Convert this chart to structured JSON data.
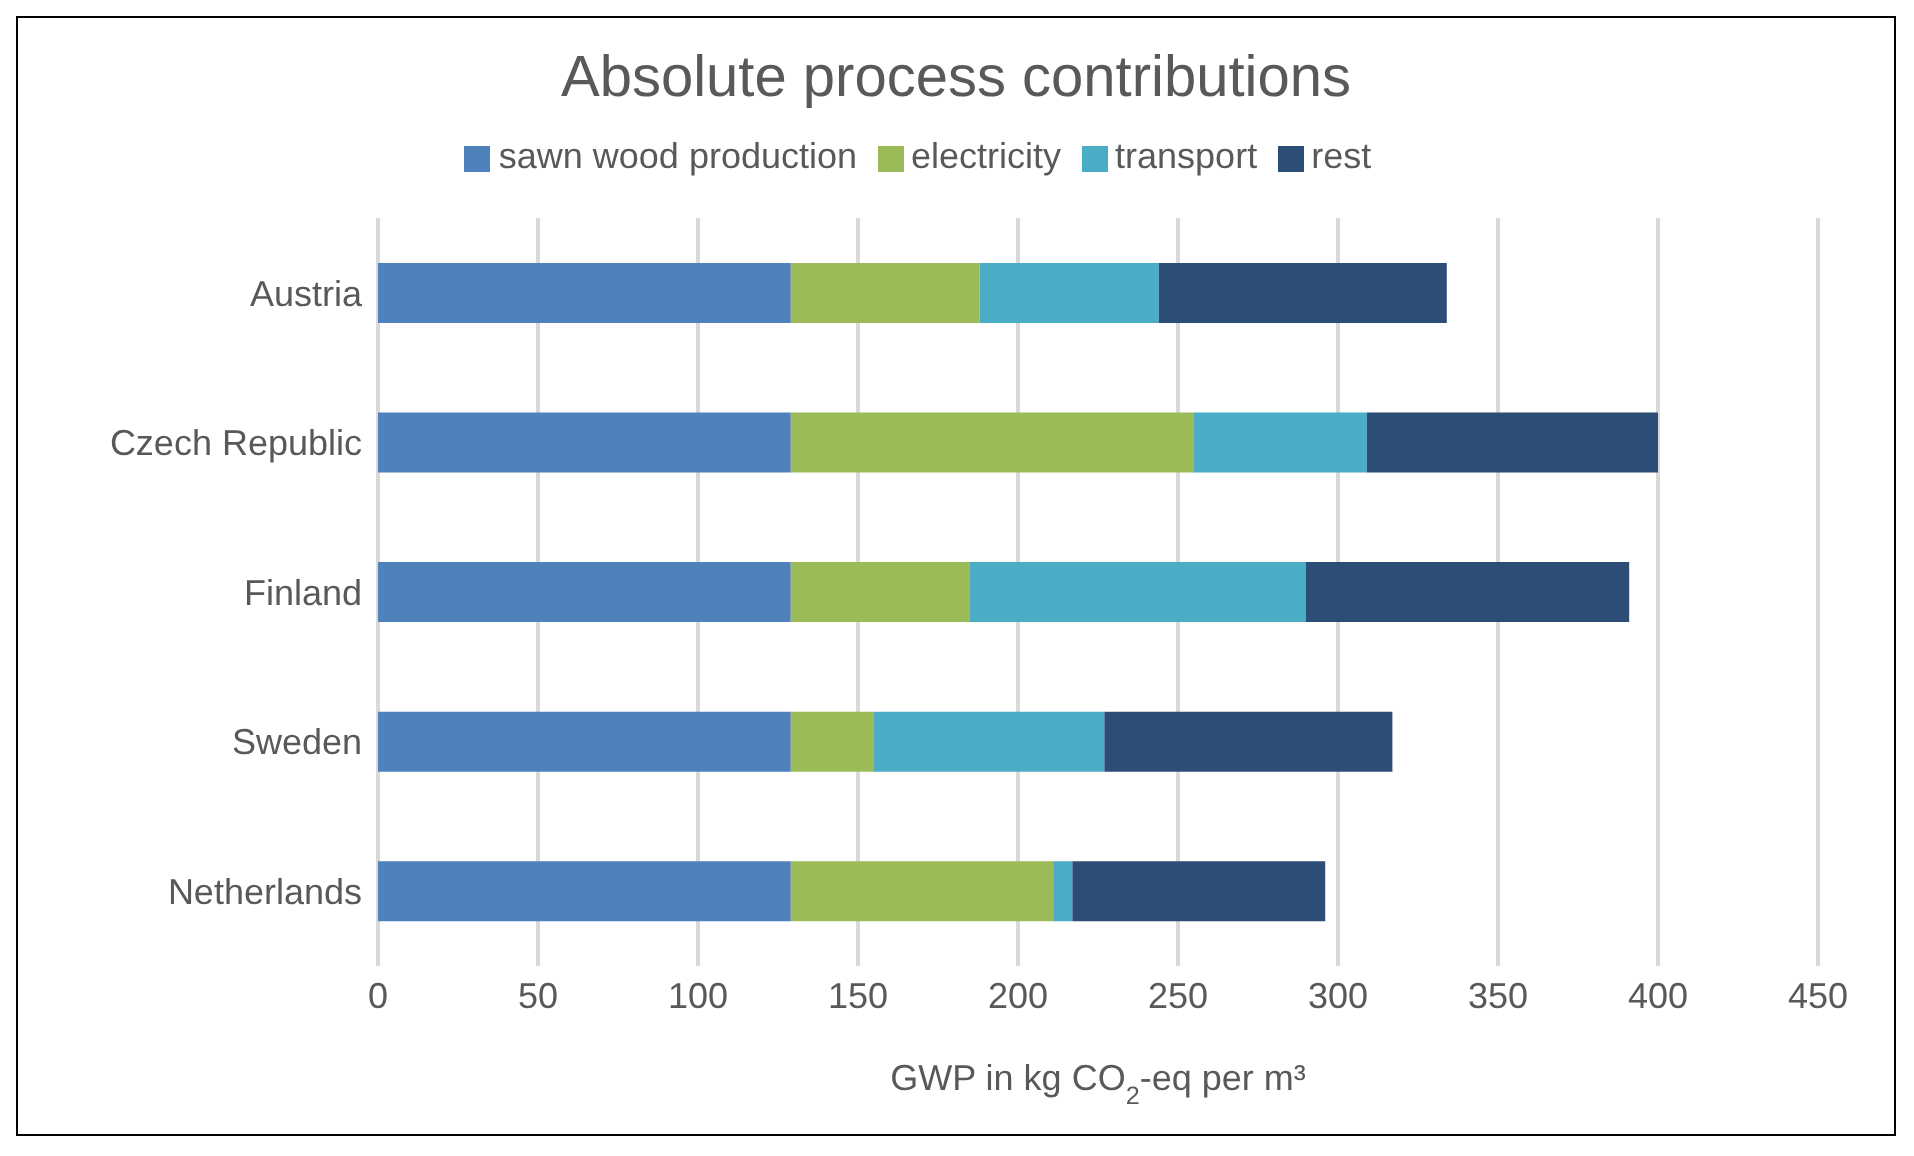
{
  "chart_data": {
    "type": "bar",
    "orientation": "horizontal",
    "stacked": true,
    "title": "Absolute process contributions",
    "xlabel": "GWP in kg CO$_{2}$-eq per m³",
    "categories": [
      "Austria",
      "Czech Republic",
      "Finland",
      "Sweden",
      "Netherlands"
    ],
    "series": [
      {
        "name": "sawn wood production",
        "color": "#4f81bd",
        "values": [
          129,
          129,
          129,
          129,
          129
        ]
      },
      {
        "name": "electricity",
        "color": "#9bbb59",
        "values": [
          59,
          126,
          56,
          26,
          82
        ]
      },
      {
        "name": "transport",
        "color": "#4bacc6",
        "values": [
          56,
          54,
          105,
          72,
          6
        ]
      },
      {
        "name": "rest",
        "color": "#2c4d75",
        "values": [
          90,
          91,
          101,
          90,
          79
        ]
      }
    ],
    "xlim": [
      0,
      450
    ],
    "xticks": [
      0,
      50,
      100,
      150,
      200,
      250,
      300,
      350,
      400,
      450
    ],
    "grid": "x",
    "legend": "top"
  }
}
